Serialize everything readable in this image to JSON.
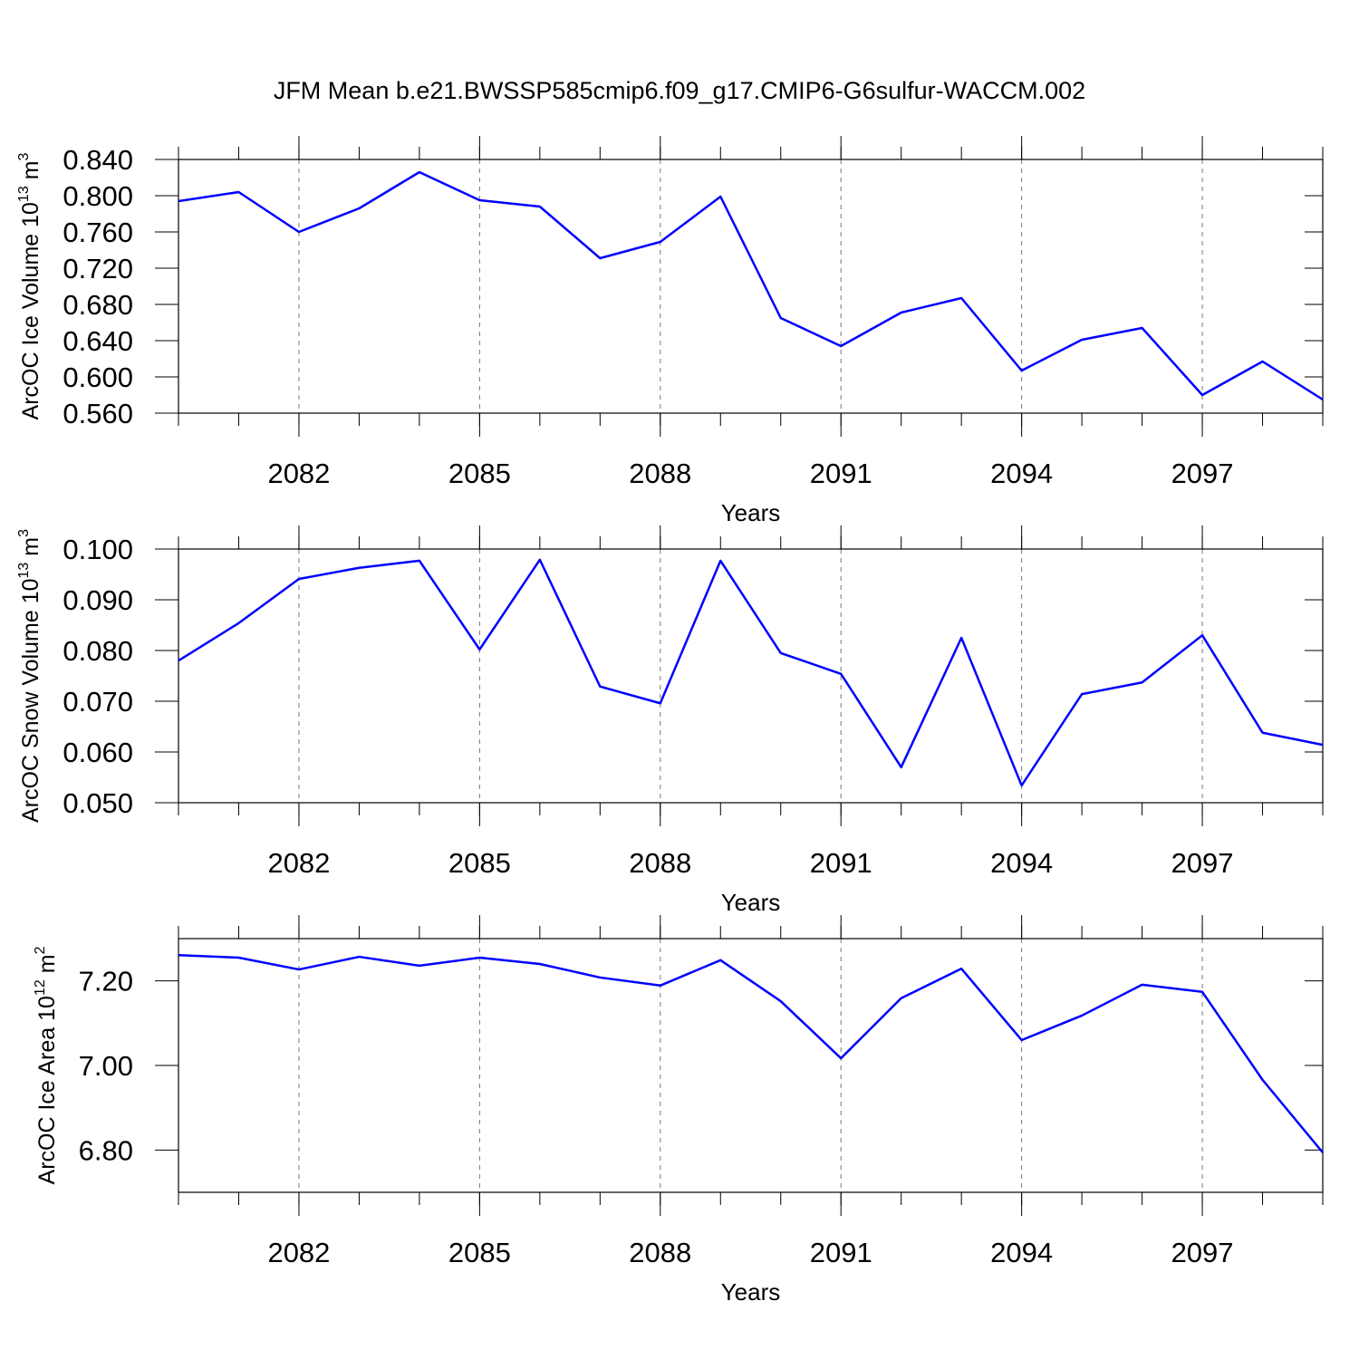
{
  "chart_data": [
    {
      "type": "line",
      "title": "JFM Mean b.e21.BWSSP585cmip6.f09_g17.CMIP6-G6sulfur-WACCM.002",
      "xlabel": "Years",
      "ylabel": {
        "text": "ArcOC Ice Volume 10",
        "exponent": "13",
        "unit": "m",
        "unit_exponent": "3"
      },
      "x": [
        2080,
        2081,
        2082,
        2083,
        2084,
        2085,
        2086,
        2087,
        2088,
        2089,
        2090,
        2091,
        2092,
        2093,
        2094,
        2095,
        2096,
        2097,
        2098,
        2099
      ],
      "series": [
        {
          "color": "#0000ff",
          "values": [
            0.794,
            0.804,
            0.76,
            0.786,
            0.826,
            0.795,
            0.788,
            0.731,
            0.749,
            0.799,
            0.665,
            0.634,
            0.671,
            0.687,
            0.607,
            0.641,
            0.654,
            0.58,
            0.617,
            0.575
          ]
        }
      ],
      "xlim": [
        2080,
        2099
      ],
      "xticks": [
        2082,
        2085,
        2088,
        2091,
        2094,
        2097
      ],
      "ylim": [
        0.56,
        0.84
      ],
      "yticks": [
        {
          "value": 0.56,
          "label": "0.560"
        },
        {
          "value": 0.6,
          "label": "0.600"
        },
        {
          "value": 0.64,
          "label": "0.640"
        },
        {
          "value": 0.68,
          "label": "0.680"
        },
        {
          "value": 0.72,
          "label": "0.720"
        },
        {
          "value": 0.76,
          "label": "0.760"
        },
        {
          "value": 0.8,
          "label": "0.800"
        },
        {
          "value": 0.84,
          "label": "0.840"
        }
      ],
      "grid": true
    },
    {
      "type": "line",
      "xlabel": "Years",
      "ylabel": {
        "text": "ArcOC Snow Volume 10",
        "exponent": "13",
        "unit": "m",
        "unit_exponent": "3"
      },
      "x": [
        2080,
        2081,
        2082,
        2083,
        2084,
        2085,
        2086,
        2087,
        2088,
        2089,
        2090,
        2091,
        2092,
        2093,
        2094,
        2095,
        2096,
        2097,
        2098,
        2099
      ],
      "series": [
        {
          "color": "#0000ff",
          "values": [
            0.078,
            0.0854,
            0.0941,
            0.0963,
            0.0977,
            0.0802,
            0.0979,
            0.0729,
            0.0696,
            0.0977,
            0.0795,
            0.0754,
            0.057,
            0.0825,
            0.0534,
            0.0714,
            0.0737,
            0.083,
            0.0638,
            0.0614
          ]
        }
      ],
      "xlim": [
        2080,
        2099
      ],
      "xticks": [
        2082,
        2085,
        2088,
        2091,
        2094,
        2097
      ],
      "ylim": [
        0.05,
        0.1
      ],
      "yticks": [
        {
          "value": 0.05,
          "label": "0.050"
        },
        {
          "value": 0.06,
          "label": "0.060"
        },
        {
          "value": 0.07,
          "label": "0.070"
        },
        {
          "value": 0.08,
          "label": "0.080"
        },
        {
          "value": 0.09,
          "label": "0.090"
        },
        {
          "value": 0.1,
          "label": "0.100"
        }
      ],
      "grid": true
    },
    {
      "type": "line",
      "xlabel": "Years",
      "ylabel": {
        "text": "ArcOC Ice Area 10",
        "exponent": "12",
        "unit": "m",
        "unit_exponent": "2"
      },
      "x": [
        2080,
        2081,
        2082,
        2083,
        2084,
        2085,
        2086,
        2087,
        2088,
        2089,
        2090,
        2091,
        2092,
        2093,
        2094,
        2095,
        2096,
        2097,
        2098,
        2099
      ],
      "series": [
        {
          "color": "#0000ff",
          "values": [
            7.261,
            7.255,
            7.227,
            7.257,
            7.236,
            7.255,
            7.24,
            7.208,
            7.189,
            7.249,
            7.152,
            7.017,
            7.159,
            7.229,
            7.06,
            7.118,
            7.191,
            7.174,
            6.966,
            6.794
          ]
        }
      ],
      "xlim": [
        2080,
        2099
      ],
      "xticks": [
        2082,
        2085,
        2088,
        2091,
        2094,
        2097
      ],
      "ylim": [
        6.7,
        7.3
      ],
      "yticks": [
        {
          "value": 6.8,
          "label": "6.80"
        },
        {
          "value": 7.0,
          "label": "7.00"
        },
        {
          "value": 7.2,
          "label": "7.20"
        }
      ],
      "grid": true
    }
  ]
}
